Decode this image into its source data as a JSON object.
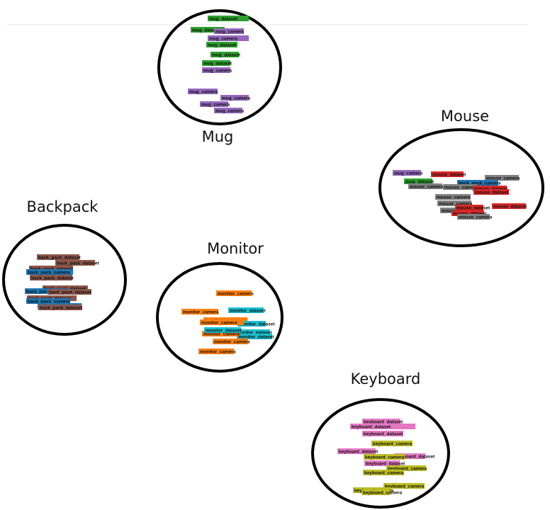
{
  "colors": {
    "mug_camera": "#9467bd",
    "mug_dataset": "#2ca02c",
    "mouse_camera": "#7f7f7f",
    "mouse_dataset": "#d62728",
    "back_pack_camera": "#1f77b4",
    "back_pack_dataset": "#8c564b",
    "monitor_camera": "#ff7f0e",
    "monitor_dataset": "#17becf",
    "keyboard_camera": "#bcbd22",
    "keyboard_dataset": "#e377c2"
  },
  "clusters": [
    {
      "id": "mug",
      "title": "Mug",
      "labels": [
        {
          "text": "mug_dataset",
          "cls": "mug_dataset"
        },
        {
          "text": "mug_camera",
          "cls": "mug_camera"
        },
        {
          "text": "mug_camera",
          "cls": "mug_camera"
        },
        {
          "text": "mug_dataset",
          "cls": "mug_dataset"
        },
        {
          "text": "mug_dataset",
          "cls": "mug_dataset"
        },
        {
          "text": "mug_dataset",
          "cls": "mug_dataset"
        },
        {
          "text": "mug_camera",
          "cls": "mug_camera"
        },
        {
          "text": "mug_dataset",
          "cls": "mug_dataset"
        },
        {
          "text": "mug_camera",
          "cls": "mug_camera"
        },
        {
          "text": "mug_camera",
          "cls": "mug_camera"
        },
        {
          "text": "mug_camera",
          "cls": "mug_camera"
        },
        {
          "text": "mug_camera",
          "cls": "mug_camera"
        }
      ]
    },
    {
      "id": "mouse",
      "title": "Mouse",
      "labels": [
        {
          "text": "mug_camera",
          "cls": "mug_camera"
        },
        {
          "text": "mouse_dataset",
          "cls": "mouse_dataset"
        },
        {
          "text": "mouse_camera",
          "cls": "mouse_camera"
        },
        {
          "text": "mug_dataset",
          "cls": "mug_dataset"
        },
        {
          "text": "back_pack_camera",
          "cls": "back_pack_camera"
        },
        {
          "text": "mouse_camera",
          "cls": "mouse_camera"
        },
        {
          "text": "mouse_camera",
          "cls": "mouse_camera"
        },
        {
          "text": "mouse_dataset",
          "cls": "mouse_dataset"
        },
        {
          "text": "mouse_dataset",
          "cls": "mouse_dataset"
        },
        {
          "text": "mouse_camera",
          "cls": "mouse_camera"
        },
        {
          "text": "mouse_camera",
          "cls": "mouse_camera"
        },
        {
          "text": "mouse_camera",
          "cls": "mouse_camera"
        },
        {
          "text": "mouse_dataset",
          "cls": "mouse_dataset"
        },
        {
          "text": "mouse_dataset",
          "cls": "mouse_dataset"
        },
        {
          "text": "mouse_dataset",
          "cls": "mouse_dataset"
        },
        {
          "text": "mouse_camera",
          "cls": "mouse_camera"
        }
      ]
    },
    {
      "id": "backpack",
      "title": "Backpack",
      "labels": [
        {
          "text": "back_pack_dataset",
          "cls": "back_pack_dataset"
        },
        {
          "text": "back_pack_dataset",
          "cls": "back_pack_dataset"
        },
        {
          "text": "back_pack_dataset",
          "cls": "back_pack_dataset"
        },
        {
          "text": "back_pack_camera",
          "cls": "back_pack_camera"
        },
        {
          "text": "back_pack_dataset",
          "cls": "back_pack_dataset"
        },
        {
          "text": "back_pack_dataset",
          "cls": "back_pack_dataset"
        },
        {
          "text": "back_pack_camera",
          "cls": "back_pack_camera"
        },
        {
          "text": "back_pack_dataset",
          "cls": "back_pack_dataset"
        },
        {
          "text": "back_pack_dataset",
          "cls": "back_pack_dataset"
        },
        {
          "text": "back_pack_camera",
          "cls": "back_pack_camera"
        },
        {
          "text": "back_pack_camera",
          "cls": "back_pack_camera"
        },
        {
          "text": "back_pack_dataset",
          "cls": "back_pack_dataset"
        }
      ]
    },
    {
      "id": "monitor",
      "title": "Monitor",
      "labels": [
        {
          "text": "monitor_camera",
          "cls": "monitor_camera"
        },
        {
          "text": "monitor_camera",
          "cls": "monitor_camera"
        },
        {
          "text": "monitor_dataset",
          "cls": "monitor_dataset"
        },
        {
          "text": "monitor_camera",
          "cls": "monitor_camera"
        },
        {
          "text": "monitor_dataset",
          "cls": "monitor_dataset"
        },
        {
          "text": "monitor_camera",
          "cls": "monitor_camera"
        },
        {
          "text": "monitor_dataset",
          "cls": "monitor_dataset"
        },
        {
          "text": "monitor_dataset",
          "cls": "monitor_dataset"
        },
        {
          "text": "monitor_camera",
          "cls": "monitor_camera"
        },
        {
          "text": "monitor_dataset",
          "cls": "monitor_dataset"
        },
        {
          "text": "monitor_camera",
          "cls": "monitor_camera"
        },
        {
          "text": "monitor_camera",
          "cls": "monitor_camera"
        }
      ]
    },
    {
      "id": "keyboard",
      "title": "Keyboard",
      "labels": [
        {
          "text": "keyboard_dataset",
          "cls": "keyboard_dataset"
        },
        {
          "text": "keyboard_dataset",
          "cls": "keyboard_dataset"
        },
        {
          "text": "keyboard_dataset",
          "cls": "keyboard_dataset"
        },
        {
          "text": "keyboard_dataset",
          "cls": "keyboard_dataset"
        },
        {
          "text": "keyboard_camera",
          "cls": "keyboard_camera"
        },
        {
          "text": "keyboard_dataset",
          "cls": "keyboard_dataset"
        },
        {
          "text": "keyboard_camera",
          "cls": "keyboard_camera"
        },
        {
          "text": "keyboard_dataset",
          "cls": "keyboard_dataset"
        },
        {
          "text": "keyboard_camera",
          "cls": "keyboard_camera"
        },
        {
          "text": "keyboard_camera",
          "cls": "keyboard_camera"
        },
        {
          "text": "keyboard_camera",
          "cls": "keyboard_camera"
        },
        {
          "text": "keyboard_camera",
          "cls": "keyboard_camera"
        },
        {
          "text": "keyboard_camera",
          "cls": "keyboard_camera"
        }
      ]
    }
  ]
}
